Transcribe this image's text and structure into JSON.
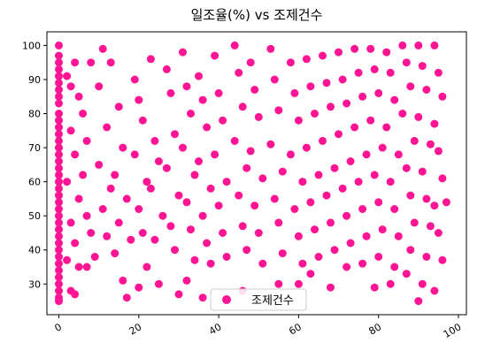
{
  "chart_data": {
    "type": "scatter",
    "title": "일조율(%) vs 조제건수",
    "xlabel": "",
    "ylabel": "",
    "xlim": [
      -3,
      102
    ],
    "ylim": [
      21,
      104
    ],
    "xticks": [
      0,
      20,
      40,
      60,
      80,
      100
    ],
    "yticks": [
      30,
      40,
      50,
      60,
      70,
      80,
      90,
      100
    ],
    "xtick_labels": [
      "0",
      "20",
      "40",
      "60",
      "80",
      "100"
    ],
    "ytick_labels": [
      "30",
      "40",
      "50",
      "60",
      "70",
      "80",
      "90",
      "100"
    ],
    "grid": false,
    "legend_position": "bottom-center",
    "series": [
      {
        "name": "조제건수",
        "color": "#ff1493",
        "points": [
          [
            0,
            100
          ],
          [
            0,
            97
          ],
          [
            0,
            95
          ],
          [
            0,
            93
          ],
          [
            0,
            91
          ],
          [
            0,
            89
          ],
          [
            0,
            87
          ],
          [
            0,
            85
          ],
          [
            0,
            83
          ],
          [
            0,
            80
          ],
          [
            0,
            78
          ],
          [
            0,
            76
          ],
          [
            0,
            74
          ],
          [
            0,
            72
          ],
          [
            0,
            70
          ],
          [
            0,
            68
          ],
          [
            0,
            66
          ],
          [
            0,
            64
          ],
          [
            0,
            62
          ],
          [
            0,
            60
          ],
          [
            0,
            58
          ],
          [
            0,
            56
          ],
          [
            0,
            54
          ],
          [
            0,
            52
          ],
          [
            0,
            50
          ],
          [
            0,
            48
          ],
          [
            0,
            46
          ],
          [
            0,
            44
          ],
          [
            0,
            42
          ],
          [
            0,
            40
          ],
          [
            0,
            38
          ],
          [
            0,
            36
          ],
          [
            0,
            34
          ],
          [
            0,
            32
          ],
          [
            0,
            30
          ],
          [
            0,
            28
          ],
          [
            0,
            26
          ],
          [
            0,
            25
          ],
          [
            2,
            91
          ],
          [
            3,
            88
          ],
          [
            4,
            95
          ],
          [
            5,
            85
          ],
          [
            3,
            75
          ],
          [
            4,
            68
          ],
          [
            2,
            60
          ],
          [
            5,
            55
          ],
          [
            3,
            48
          ],
          [
            4,
            42
          ],
          [
            2,
            37
          ],
          [
            5,
            35
          ],
          [
            3,
            28
          ],
          [
            4,
            27
          ],
          [
            6,
            80
          ],
          [
            7,
            72
          ],
          [
            8,
            95
          ],
          [
            6,
            62
          ],
          [
            7,
            50
          ],
          [
            8,
            45
          ],
          [
            9,
            38
          ],
          [
            7,
            35
          ],
          [
            10,
            88
          ],
          [
            11,
            99
          ],
          [
            12,
            76
          ],
          [
            10,
            65
          ],
          [
            13,
            58
          ],
          [
            11,
            52
          ],
          [
            12,
            44
          ],
          [
            14,
            39
          ],
          [
            13,
            95
          ],
          [
            15,
            82
          ],
          [
            16,
            70
          ],
          [
            14,
            62
          ],
          [
            17,
            55
          ],
          [
            15,
            48
          ],
          [
            18,
            43
          ],
          [
            16,
            31
          ],
          [
            17,
            26
          ],
          [
            19,
            90
          ],
          [
            20,
            84
          ],
          [
            21,
            78
          ],
          [
            19,
            68
          ],
          [
            22,
            60
          ],
          [
            20,
            52
          ],
          [
            21,
            45
          ],
          [
            22,
            35
          ],
          [
            20,
            29
          ],
          [
            23,
            96
          ],
          [
            24,
            72
          ],
          [
            25,
            66
          ],
          [
            23,
            58
          ],
          [
            26,
            50
          ],
          [
            24,
            43
          ],
          [
            25,
            30
          ],
          [
            27,
            93
          ],
          [
            28,
            86
          ],
          [
            29,
            74
          ],
          [
            27,
            64
          ],
          [
            30,
            56
          ],
          [
            28,
            47
          ],
          [
            29,
            40
          ],
          [
            30,
            27
          ],
          [
            31,
            98
          ],
          [
            32,
            88
          ],
          [
            33,
            80
          ],
          [
            31,
            70
          ],
          [
            34,
            62
          ],
          [
            32,
            54
          ],
          [
            33,
            46
          ],
          [
            34,
            37
          ],
          [
            32,
            31
          ],
          [
            35,
            91
          ],
          [
            36,
            84
          ],
          [
            37,
            76
          ],
          [
            35,
            66
          ],
          [
            38,
            58
          ],
          [
            36,
            50
          ],
          [
            37,
            42
          ],
          [
            38,
            36
          ],
          [
            36,
            26
          ],
          [
            39,
            97
          ],
          [
            40,
            86
          ],
          [
            41,
            78
          ],
          [
            39,
            68
          ],
          [
            42,
            60
          ],
          [
            40,
            53
          ],
          [
            41,
            45
          ],
          [
            42,
            38
          ],
          [
            44,
            100
          ],
          [
            45,
            92
          ],
          [
            46,
            82
          ],
          [
            44,
            72
          ],
          [
            47,
            64
          ],
          [
            45,
            56
          ],
          [
            46,
            47
          ],
          [
            47,
            40
          ],
          [
            46,
            28
          ],
          [
            48,
            95
          ],
          [
            49,
            87
          ],
          [
            50,
            79
          ],
          [
            48,
            69
          ],
          [
            51,
            61
          ],
          [
            49,
            53
          ],
          [
            50,
            45
          ],
          [
            51,
            36
          ],
          [
            53,
            99
          ],
          [
            54,
            90
          ],
          [
            55,
            81
          ],
          [
            53,
            71
          ],
          [
            56,
            63
          ],
          [
            54,
            55
          ],
          [
            55,
            48
          ],
          [
            56,
            39
          ],
          [
            55,
            30
          ],
          [
            58,
            95
          ],
          [
            59,
            86
          ],
          [
            60,
            78
          ],
          [
            58,
            68
          ],
          [
            61,
            60
          ],
          [
            59,
            52
          ],
          [
            60,
            44
          ],
          [
            61,
            36
          ],
          [
            60,
            30
          ],
          [
            62,
            96
          ],
          [
            63,
            88
          ],
          [
            64,
            80
          ],
          [
            62,
            70
          ],
          [
            65,
            62
          ],
          [
            63,
            54
          ],
          [
            64,
            46
          ],
          [
            65,
            38
          ],
          [
            63,
            33
          ],
          [
            66,
            97
          ],
          [
            67,
            89
          ],
          [
            68,
            82
          ],
          [
            66,
            72
          ],
          [
            69,
            64
          ],
          [
            67,
            56
          ],
          [
            68,
            48
          ],
          [
            69,
            40
          ],
          [
            68,
            29
          ],
          [
            70,
            98
          ],
          [
            71,
            90
          ],
          [
            72,
            83
          ],
          [
            70,
            74
          ],
          [
            73,
            66
          ],
          [
            71,
            58
          ],
          [
            72,
            50
          ],
          [
            73,
            42
          ],
          [
            72,
            35
          ],
          [
            74,
            99
          ],
          [
            75,
            92
          ],
          [
            76,
            85
          ],
          [
            74,
            76
          ],
          [
            77,
            68
          ],
          [
            75,
            60
          ],
          [
            76,
            52
          ],
          [
            77,
            44
          ],
          [
            76,
            36
          ],
          [
            78,
            99
          ],
          [
            79,
            93
          ],
          [
            80,
            86
          ],
          [
            78,
            78
          ],
          [
            81,
            70
          ],
          [
            79,
            62
          ],
          [
            80,
            54
          ],
          [
            81,
            46
          ],
          [
            80,
            38
          ],
          [
            79,
            29
          ],
          [
            82,
            98
          ],
          [
            83,
            92
          ],
          [
            84,
            84
          ],
          [
            82,
            76
          ],
          [
            85,
            68
          ],
          [
            83,
            60
          ],
          [
            84,
            52
          ],
          [
            85,
            44
          ],
          [
            84,
            35
          ],
          [
            83,
            30
          ],
          [
            86,
            100
          ],
          [
            87,
            95
          ],
          [
            88,
            88
          ],
          [
            86,
            80
          ],
          [
            89,
            72
          ],
          [
            87,
            64
          ],
          [
            88,
            56
          ],
          [
            89,
            48
          ],
          [
            88,
            40
          ],
          [
            87,
            33
          ],
          [
            90,
            100
          ],
          [
            91,
            94
          ],
          [
            92,
            87
          ],
          [
            90,
            79
          ],
          [
            93,
            71
          ],
          [
            91,
            63
          ],
          [
            92,
            55
          ],
          [
            93,
            47
          ],
          [
            92,
            38
          ],
          [
            91,
            30
          ],
          [
            90,
            25
          ],
          [
            94,
            100
          ],
          [
            95,
            92
          ],
          [
            96,
            85
          ],
          [
            94,
            77
          ],
          [
            95,
            69
          ],
          [
            96,
            61
          ],
          [
            94,
            53
          ],
          [
            95,
            45
          ],
          [
            96,
            37
          ],
          [
            94,
            28
          ],
          [
            97,
            54
          ]
        ]
      }
    ]
  }
}
